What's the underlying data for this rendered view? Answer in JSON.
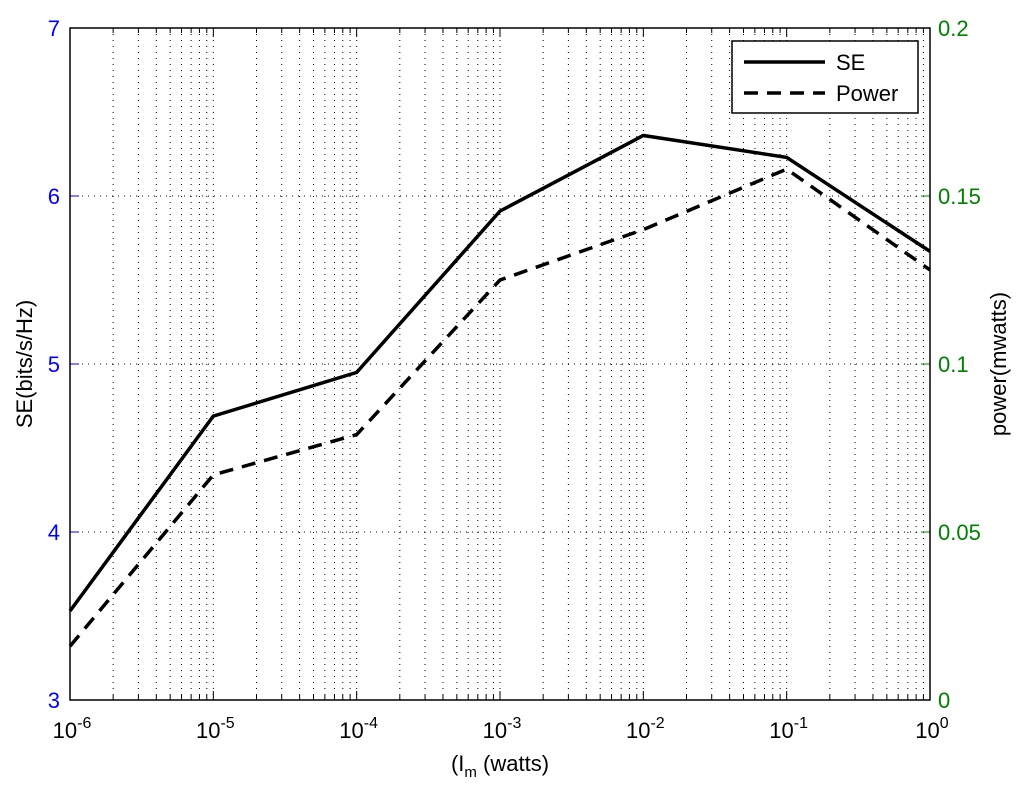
{
  "chart_data": {
    "type": "line",
    "xscale": "log",
    "xlabel": "(I",
    "xlabel_sub": "m",
    "xlabel_suffix": " (watts)",
    "xlim": [
      1e-06,
      1
    ],
    "x_ticks": [
      {
        "base": "10",
        "exp": "-6"
      },
      {
        "base": "10",
        "exp": "-5"
      },
      {
        "base": "10",
        "exp": "-4"
      },
      {
        "base": "10",
        "exp": "-3"
      },
      {
        "base": "10",
        "exp": "-2"
      },
      {
        "base": "10",
        "exp": "-1"
      },
      {
        "base": "10",
        "exp": "0"
      }
    ],
    "ylabel_left": "SE(bits/s/Hz)",
    "ylim_left": [
      3,
      7
    ],
    "y_ticks_left": [
      "3",
      "4",
      "5",
      "6",
      "7"
    ],
    "ylabel_right": "power(mwatts)",
    "ylim_right": [
      0,
      0.2
    ],
    "y_ticks_right": [
      "0",
      "0.05",
      "0.1",
      "0.15",
      "0.2"
    ],
    "grid": true,
    "legend_position": "top-right",
    "left_axis_color": "#0000ff",
    "right_axis_color": "#008000",
    "series": [
      {
        "name": "SE",
        "axis": "left",
        "style": "solid",
        "x": [
          1e-06,
          1e-05,
          0.0001,
          0.001,
          0.01,
          0.1,
          1
        ],
        "y": [
          3.53,
          4.69,
          4.95,
          5.91,
          6.36,
          6.23,
          5.67
        ]
      },
      {
        "name": "Power",
        "axis": "right",
        "style": "dashed",
        "x": [
          1e-06,
          1e-05,
          0.0001,
          0.001,
          0.01,
          0.1,
          1
        ],
        "y": [
          0.016,
          0.067,
          0.079,
          0.125,
          0.14,
          0.158,
          0.128
        ]
      }
    ]
  }
}
